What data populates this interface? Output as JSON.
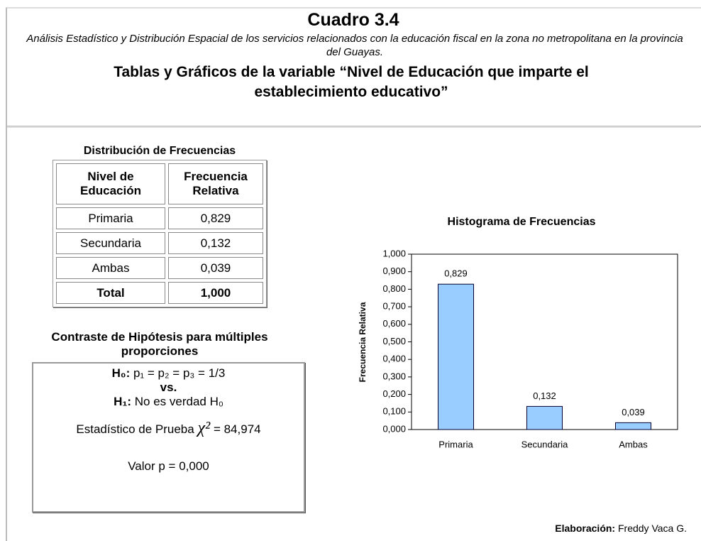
{
  "header": {
    "title": "Cuadro 3.4",
    "subtitle": "Análisis Estadístico y Distribución Espacial de los servicios relacionados con la educación fiscal en la zona no metropolitana en la provincia del Guayas.",
    "heading": "Tablas y Gráficos de la variable “Nivel de Educación que imparte el establecimiento educativo”"
  },
  "table": {
    "title": "Distribución de Frecuencias",
    "columns": [
      "Nivel de Educación",
      "Frecuencia Relativa"
    ],
    "rows": [
      [
        "Primaria",
        "0,829"
      ],
      [
        "Secundaria",
        "0,132"
      ],
      [
        "Ambas",
        "0,039"
      ]
    ],
    "total": [
      "Total",
      "1,000"
    ]
  },
  "hypothesis": {
    "title": "Contraste de Hipótesis para múltiples proporciones",
    "h0_label": "H₀:",
    "h0_text": "p₁ = p₂ = p₃ = 1/3",
    "vs": "vs.",
    "h1_label": "H₁:",
    "h1_text": "No es verdad H₀",
    "statistic_label": "Estadístico de Prueba",
    "statistic_symbol": "χ²",
    "statistic_value": "= 84,974",
    "p_value": "Valor p = 0,000"
  },
  "chart_data": {
    "type": "bar",
    "title": "Histograma de Frecuencias",
    "y_label": "Frecuencia Relativa",
    "categories": [
      "Primaria",
      "Secundaria",
      "Ambas"
    ],
    "values": [
      0.829,
      0.132,
      0.039
    ],
    "value_labels": [
      "0,829",
      "0,132",
      "0,039"
    ],
    "color": "#99ccff",
    "ylim": [
      0,
      1
    ],
    "yticks": [
      {
        "value": 0,
        "label": "0,000"
      },
      {
        "value": 0.1,
        "label": "0,100"
      },
      {
        "value": 0.2,
        "label": "0,200"
      },
      {
        "value": 0.3,
        "label": "0,300"
      },
      {
        "value": 0.4,
        "label": "0,400"
      },
      {
        "value": 0.5,
        "label": "0,500"
      },
      {
        "value": 0.6,
        "label": "0,600"
      },
      {
        "value": 0.7,
        "label": "0,700"
      },
      {
        "value": 0.8,
        "label": "0,800"
      },
      {
        "value": 0.9,
        "label": "0,900"
      },
      {
        "value": 1,
        "label": "1,000"
      }
    ],
    "grid": false
  },
  "footer": {
    "label": "Elaboración:",
    "author": "Freddy Vaca G."
  }
}
